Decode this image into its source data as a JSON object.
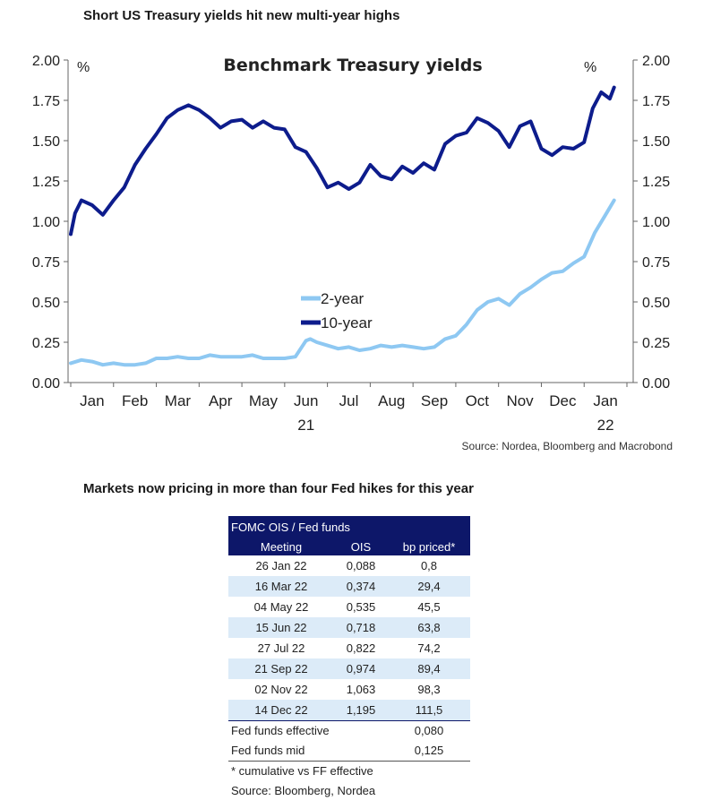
{
  "chart_heading": "Short US Treasury yields hit new multi-year highs",
  "table_heading": "Markets now pricing in more than four Fed hikes for this year",
  "chart_data": {
    "type": "line",
    "title": "Benchmark Treasury yields",
    "unit_left": "%",
    "unit_right": "%",
    "ylim": [
      0,
      2
    ],
    "yticks": [
      "0.00",
      "0.25",
      "0.50",
      "0.75",
      "1.00",
      "1.25",
      "1.50",
      "1.75",
      "2.00"
    ],
    "xlim": [
      0,
      13
    ],
    "month_labels": [
      "Jan",
      "Feb",
      "Mar",
      "Apr",
      "May",
      "Jun",
      "Jul",
      "Aug",
      "Sep",
      "Oct",
      "Nov",
      "Dec",
      "Jan"
    ],
    "year_labels": [
      {
        "month_index": 5.5,
        "text": "21"
      },
      {
        "month_index": 12.5,
        "text": "22"
      }
    ],
    "legend": [
      "2-year",
      "10-year"
    ],
    "source": "Source: Nordea, Bloomberg and Macrobond",
    "series": [
      {
        "name": "2-year",
        "color": "#8ec8f2",
        "x": [
          0,
          0.25,
          0.5,
          0.75,
          1,
          1.25,
          1.5,
          1.75,
          2,
          2.25,
          2.5,
          2.75,
          3,
          3.25,
          3.5,
          3.75,
          4,
          4.25,
          4.5,
          4.75,
          5,
          5.25,
          5.5,
          5.6,
          5.75,
          6,
          6.25,
          6.5,
          6.75,
          7,
          7.25,
          7.5,
          7.75,
          8,
          8.25,
          8.5,
          8.75,
          9,
          9.25,
          9.5,
          9.75,
          10,
          10.25,
          10.5,
          10.75,
          11,
          11.25,
          11.5,
          11.75,
          12,
          12.25,
          12.5,
          12.7
        ],
        "values": [
          0.12,
          0.14,
          0.13,
          0.11,
          0.12,
          0.11,
          0.11,
          0.12,
          0.15,
          0.15,
          0.16,
          0.15,
          0.15,
          0.17,
          0.16,
          0.16,
          0.16,
          0.17,
          0.15,
          0.15,
          0.15,
          0.16,
          0.26,
          0.27,
          0.25,
          0.23,
          0.21,
          0.22,
          0.2,
          0.21,
          0.23,
          0.22,
          0.23,
          0.22,
          0.21,
          0.22,
          0.27,
          0.29,
          0.36,
          0.45,
          0.5,
          0.52,
          0.48,
          0.55,
          0.59,
          0.64,
          0.68,
          0.69,
          0.74,
          0.78,
          0.93,
          1.04,
          1.13
        ]
      },
      {
        "name": "10-year",
        "color": "#0d1c8c",
        "x": [
          0,
          0.1,
          0.25,
          0.5,
          0.75,
          1,
          1.25,
          1.5,
          1.75,
          2,
          2.25,
          2.5,
          2.75,
          3,
          3.25,
          3.5,
          3.75,
          4,
          4.25,
          4.5,
          4.75,
          5,
          5.25,
          5.5,
          5.75,
          6,
          6.25,
          6.5,
          6.75,
          7,
          7.25,
          7.5,
          7.75,
          8,
          8.25,
          8.5,
          8.75,
          9,
          9.25,
          9.5,
          9.75,
          10,
          10.25,
          10.5,
          10.75,
          11,
          11.25,
          11.5,
          11.75,
          12,
          12.2,
          12.4,
          12.6,
          12.7
        ],
        "values": [
          0.92,
          1.05,
          1.13,
          1.1,
          1.04,
          1.13,
          1.21,
          1.35,
          1.45,
          1.54,
          1.64,
          1.69,
          1.72,
          1.69,
          1.64,
          1.58,
          1.62,
          1.63,
          1.58,
          1.62,
          1.58,
          1.57,
          1.46,
          1.43,
          1.33,
          1.21,
          1.24,
          1.2,
          1.24,
          1.35,
          1.28,
          1.26,
          1.34,
          1.3,
          1.36,
          1.32,
          1.48,
          1.53,
          1.55,
          1.64,
          1.61,
          1.56,
          1.46,
          1.59,
          1.62,
          1.45,
          1.41,
          1.46,
          1.45,
          1.49,
          1.7,
          1.8,
          1.76,
          1.83
        ]
      }
    ]
  },
  "table": {
    "title": "FOMC OIS / Fed funds",
    "headers": [
      "Meeting",
      "OIS",
      "bp priced*"
    ],
    "rows": [
      {
        "meeting": "26 Jan 22",
        "ois": "0,088",
        "bp": "0,8"
      },
      {
        "meeting": "16 Mar 22",
        "ois": "0,374",
        "bp": "29,4"
      },
      {
        "meeting": "04 May 22",
        "ois": "0,535",
        "bp": "45,5"
      },
      {
        "meeting": "15 Jun 22",
        "ois": "0,718",
        "bp": "63,8"
      },
      {
        "meeting": "27 Jul 22",
        "ois": "0,822",
        "bp": "74,2"
      },
      {
        "meeting": "21 Sep 22",
        "ois": "0,974",
        "bp": "89,4"
      },
      {
        "meeting": "02 Nov 22",
        "ois": "1,063",
        "bp": "98,3"
      },
      {
        "meeting": "14 Dec 22",
        "ois": "1,195",
        "bp": "111,5"
      }
    ],
    "footer": [
      {
        "label": "Fed funds effective",
        "value": "0,080"
      },
      {
        "label": "Fed funds mid",
        "value": "0,125"
      }
    ],
    "note": "* cumulative vs FF effective",
    "source": "Source: Bloomberg, Nordea"
  }
}
